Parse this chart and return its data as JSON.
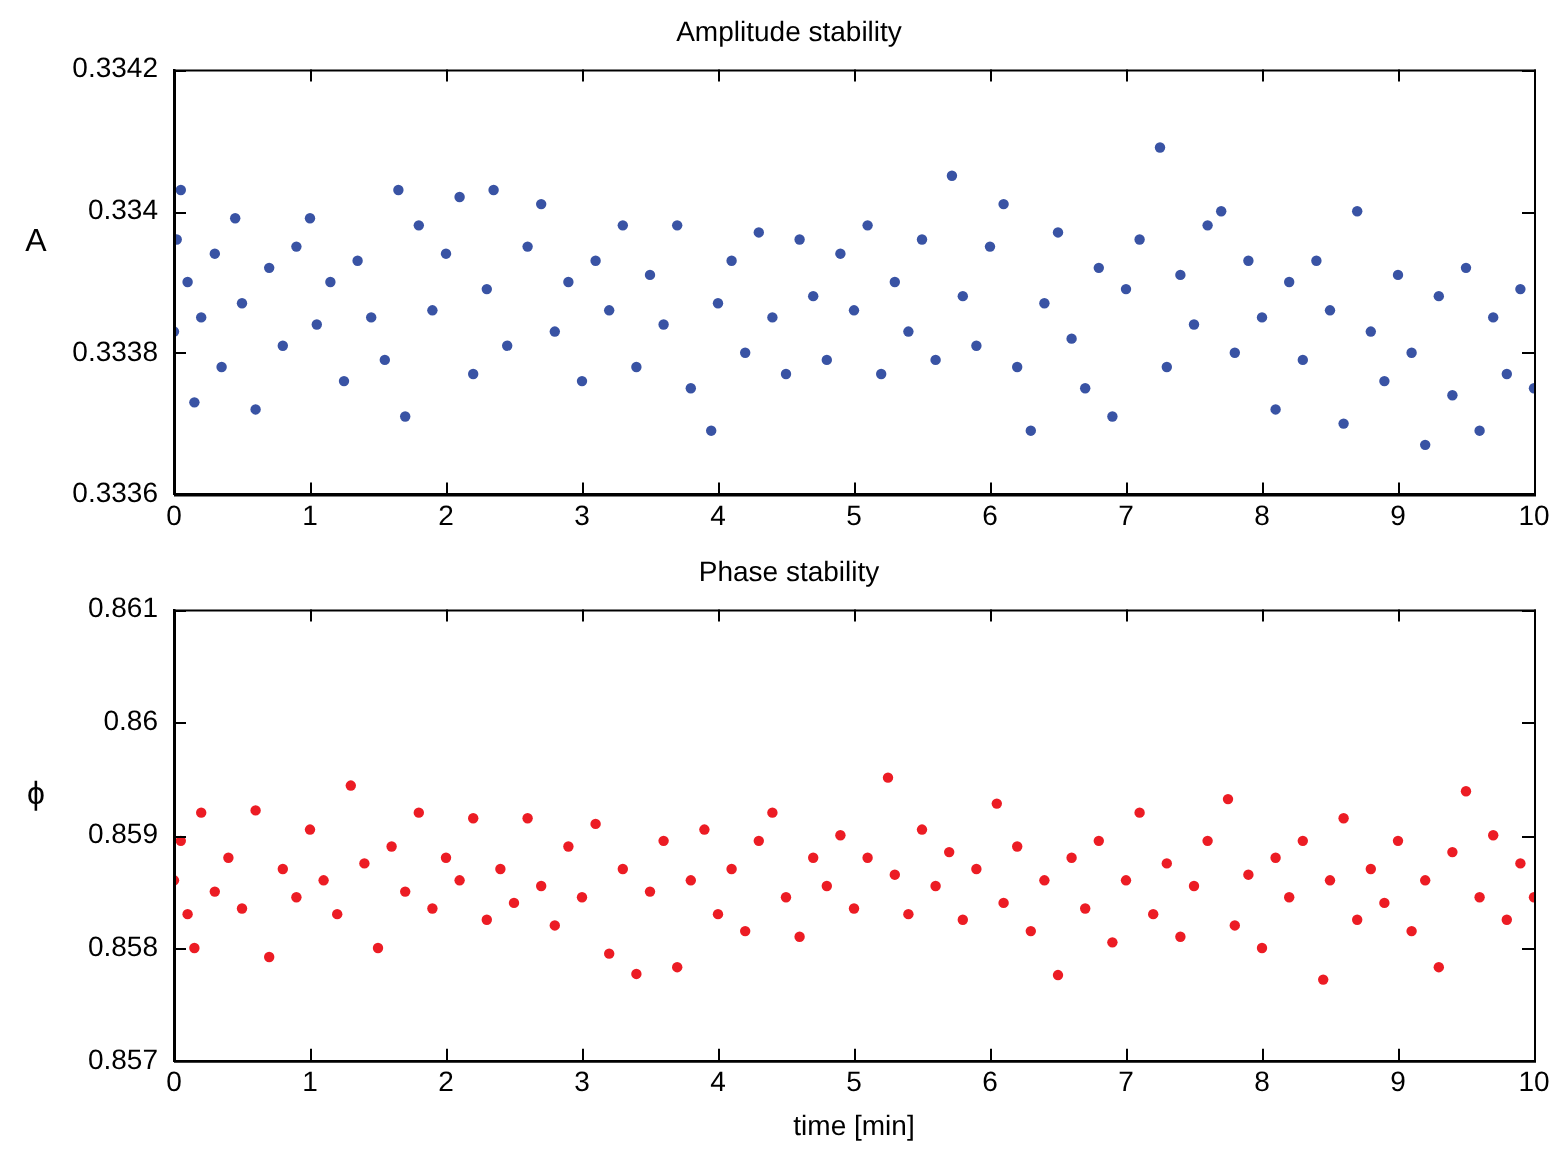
{
  "chart_data": [
    {
      "type": "scatter",
      "title": "Amplitude stability",
      "ylabel": "A",
      "marker": "circle",
      "xlim": [
        0,
        10
      ],
      "ylim": [
        0.3336,
        0.3342
      ],
      "xticks": [
        0,
        1,
        2,
        3,
        4,
        5,
        6,
        7,
        8,
        9,
        10
      ],
      "yticks": [
        0.3336,
        0.3338,
        0.334,
        0.3342
      ],
      "x": [
        0,
        0.02,
        0.05,
        0.1,
        0.15,
        0.2,
        0.3,
        0.35,
        0.45,
        0.5,
        0.6,
        0.7,
        0.8,
        0.9,
        1.0,
        1.05,
        1.15,
        1.25,
        1.35,
        1.45,
        1.55,
        1.65,
        1.7,
        1.8,
        1.9,
        2.0,
        2.1,
        2.2,
        2.3,
        2.35,
        2.45,
        2.6,
        2.7,
        2.8,
        2.9,
        3.0,
        3.1,
        3.2,
        3.3,
        3.4,
        3.5,
        3.6,
        3.7,
        3.8,
        3.95,
        4.0,
        4.1,
        4.2,
        4.3,
        4.4,
        4.5,
        4.6,
        4.7,
        4.8,
        4.9,
        5.0,
        5.1,
        5.2,
        5.3,
        5.4,
        5.5,
        5.6,
        5.72,
        5.8,
        5.9,
        6.0,
        6.1,
        6.2,
        6.3,
        6.4,
        6.5,
        6.6,
        6.7,
        6.8,
        6.9,
        7.0,
        7.1,
        7.25,
        7.3,
        7.4,
        7.5,
        7.6,
        7.7,
        7.8,
        7.9,
        8.0,
        8.1,
        8.2,
        8.3,
        8.4,
        8.5,
        8.6,
        8.7,
        8.8,
        8.9,
        9.0,
        9.1,
        9.2,
        9.3,
        9.4,
        9.5,
        9.6,
        9.7,
        9.8,
        9.9,
        10.0
      ],
      "series": [
        {
          "color": "#3953a4",
          "values": [
            0.33383,
            0.33396,
            0.33403,
            0.3339,
            0.33373,
            0.33385,
            0.33394,
            0.33378,
            0.33399,
            0.33387,
            0.33372,
            0.33392,
            0.33381,
            0.33395,
            0.33399,
            0.33384,
            0.3339,
            0.33376,
            0.33393,
            0.33385,
            0.33379,
            0.33403,
            0.33371,
            0.33398,
            0.33386,
            0.33394,
            0.33402,
            0.33377,
            0.33389,
            0.33403,
            0.33381,
            0.33395,
            0.33401,
            0.33383,
            0.3339,
            0.33376,
            0.33393,
            0.33386,
            0.33398,
            0.33378,
            0.33391,
            0.33384,
            0.33398,
            0.33375,
            0.33369,
            0.33387,
            0.33393,
            0.3338,
            0.33397,
            0.33385,
            0.33377,
            0.33396,
            0.33388,
            0.33379,
            0.33394,
            0.33386,
            0.33398,
            0.33377,
            0.3339,
            0.33383,
            0.33396,
            0.33379,
            0.33405,
            0.33388,
            0.33381,
            0.33395,
            0.33401,
            0.33378,
            0.33369,
            0.33387,
            0.33397,
            0.33382,
            0.33375,
            0.33392,
            0.33371,
            0.33389,
            0.33396,
            0.33409,
            0.33378,
            0.33391,
            0.33384,
            0.33398,
            0.334,
            0.3338,
            0.33393,
            0.33385,
            0.33372,
            0.3339,
            0.33379,
            0.33393,
            0.33386,
            0.3337,
            0.334,
            0.33383,
            0.33376,
            0.33391,
            0.3338,
            0.33367,
            0.33388,
            0.33374,
            0.33392,
            0.33369,
            0.33385,
            0.33377,
            0.33389,
            0.33375
          ]
        }
      ]
    },
    {
      "type": "scatter",
      "title": "Phase stability",
      "ylabel": "ϕ",
      "xlabel": "time [min]",
      "marker": "circle",
      "xlim": [
        0,
        10
      ],
      "ylim": [
        0.857,
        0.861
      ],
      "xticks": [
        0,
        1,
        2,
        3,
        4,
        5,
        6,
        7,
        8,
        9,
        10
      ],
      "yticks": [
        0.857,
        0.858,
        0.859,
        0.86,
        0.861
      ],
      "x": [
        0,
        0.05,
        0.1,
        0.15,
        0.2,
        0.3,
        0.4,
        0.5,
        0.6,
        0.7,
        0.8,
        0.9,
        1.0,
        1.1,
        1.2,
        1.3,
        1.4,
        1.5,
        1.6,
        1.7,
        1.8,
        1.9,
        2.0,
        2.1,
        2.2,
        2.3,
        2.4,
        2.5,
        2.6,
        2.7,
        2.8,
        2.9,
        3.0,
        3.1,
        3.2,
        3.3,
        3.4,
        3.5,
        3.6,
        3.7,
        3.8,
        3.9,
        4.0,
        4.1,
        4.2,
        4.3,
        4.4,
        4.5,
        4.6,
        4.7,
        4.8,
        4.9,
        5.0,
        5.1,
        5.25,
        5.3,
        5.4,
        5.5,
        5.6,
        5.7,
        5.8,
        5.9,
        6.05,
        6.1,
        6.2,
        6.3,
        6.4,
        6.5,
        6.6,
        6.7,
        6.8,
        6.9,
        7.0,
        7.1,
        7.2,
        7.3,
        7.4,
        7.5,
        7.6,
        7.75,
        7.8,
        7.9,
        8.0,
        8.1,
        8.2,
        8.3,
        8.45,
        8.5,
        8.6,
        8.7,
        8.8,
        8.9,
        9.0,
        9.1,
        9.2,
        9.3,
        9.4,
        9.5,
        9.6,
        9.7,
        9.8,
        9.9,
        10.0
      ],
      "series": [
        {
          "color": "#ec1c24",
          "values": [
            0.8586,
            0.85895,
            0.8583,
            0.858,
            0.8592,
            0.8585,
            0.8588,
            0.85835,
            0.85922,
            0.85792,
            0.8587,
            0.85845,
            0.85905,
            0.8586,
            0.8583,
            0.85944,
            0.85875,
            0.858,
            0.8589,
            0.8585,
            0.8592,
            0.85835,
            0.8588,
            0.8586,
            0.85915,
            0.85825,
            0.8587,
            0.8584,
            0.85915,
            0.85855,
            0.8582,
            0.8589,
            0.85845,
            0.8591,
            0.85795,
            0.8587,
            0.85777,
            0.8585,
            0.85895,
            0.85783,
            0.8586,
            0.85905,
            0.8583,
            0.8587,
            0.85815,
            0.85895,
            0.8592,
            0.85845,
            0.8581,
            0.8588,
            0.85855,
            0.859,
            0.85835,
            0.8588,
            0.85951,
            0.85865,
            0.8583,
            0.85905,
            0.85855,
            0.85885,
            0.85825,
            0.8587,
            0.85928,
            0.8584,
            0.8589,
            0.85815,
            0.8586,
            0.85776,
            0.8588,
            0.85835,
            0.85895,
            0.85805,
            0.8586,
            0.8592,
            0.8583,
            0.85875,
            0.8581,
            0.85855,
            0.85895,
            0.85932,
            0.8582,
            0.85865,
            0.858,
            0.8588,
            0.85845,
            0.85895,
            0.85772,
            0.8586,
            0.85915,
            0.85825,
            0.8587,
            0.8584,
            0.85895,
            0.85815,
            0.8586,
            0.85783,
            0.85885,
            0.85939,
            0.85845,
            0.859,
            0.85825,
            0.85875,
            0.85845
          ]
        }
      ]
    }
  ]
}
